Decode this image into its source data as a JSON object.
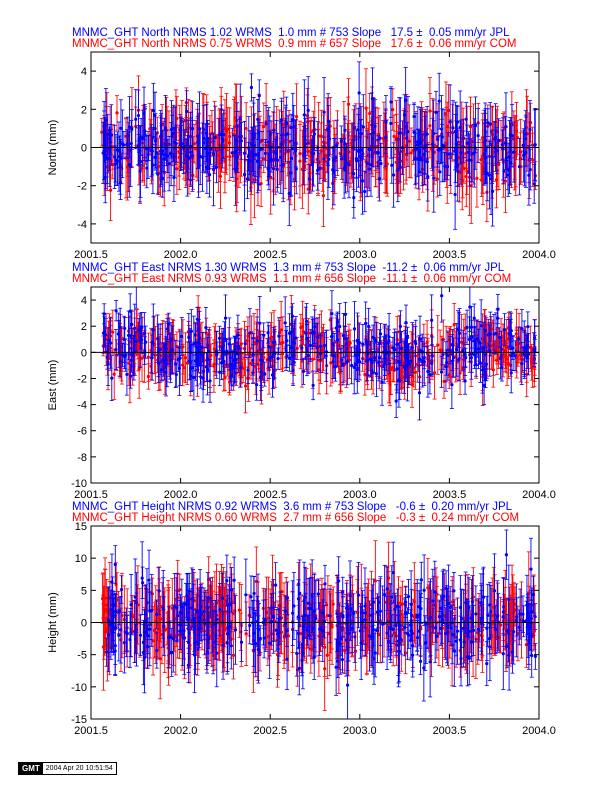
{
  "stamp": {
    "logo": "GMT",
    "text": "2004 Apr 20 10:51:54"
  },
  "colors": {
    "jpl": "#0000ff",
    "com": "#ff0000",
    "zero_line": "#000000"
  },
  "chart_data": [
    {
      "type": "scatter",
      "component": "north",
      "ylabel": "North (mm)",
      "ylim": [
        -5,
        5
      ],
      "yticks": [
        -4,
        -2,
        0,
        2,
        4
      ],
      "xlim": [
        2001.5,
        2004.0
      ],
      "xticks": [
        2001.5,
        2002.0,
        2002.5,
        2003.0,
        2003.5,
        2004.0
      ],
      "xtick_labels": [
        "2001.5",
        "2002.0",
        "2002.5",
        "2003.0",
        "2003.5",
        "2004.0"
      ],
      "header": [
        "MNMC_GHT North NRMS 1.02 WRMS  1.0 mm # 753 Slope   17.5 ±  0.05 mm/yr JPL",
        "MNMC_GHT North NRMS 0.75 WRMS  0.9 mm # 657 Slope   17.6 ±  0.06 mm/yr COM"
      ],
      "series": [
        {
          "name": "JPL",
          "color": "#0000ff",
          "count": 753,
          "nrms": 1.02,
          "wrms_mm": 1.0,
          "slope_mm_yr": 17.5,
          "slope_sigma": 0.05,
          "scatter_sd": 1.0,
          "error_bar_mean": 1.3
        },
        {
          "name": "COM",
          "color": "#ff0000",
          "count": 657,
          "nrms": 0.75,
          "wrms_mm": 0.9,
          "slope_mm_yr": 17.6,
          "slope_sigma": 0.06,
          "scatter_sd": 0.9,
          "error_bar_mean": 1.4
        }
      ]
    },
    {
      "type": "scatter",
      "component": "east",
      "ylabel": "East (mm)",
      "ylim": [
        -10,
        5
      ],
      "yticks": [
        -10,
        -8,
        -6,
        -4,
        -2,
        0,
        2,
        4
      ],
      "xlim": [
        2001.5,
        2004.0
      ],
      "xticks": [
        2001.5,
        2002.0,
        2002.5,
        2003.0,
        2003.5,
        2004.0
      ],
      "xtick_labels": [
        "2001.5",
        "2002.0",
        "2002.5",
        "2003.0",
        "2003.5",
        "2004.0"
      ],
      "header": [
        "MNMC_GHT East NRMS 1.30 WRMS  1.3 mm # 753 Slope  -11.2 ±  0.06 mm/yr JPL",
        "MNMC_GHT East NRMS 0.93 WRMS  1.1 mm # 656 Slope  -11.1 ±  0.06 mm/yr COM"
      ],
      "series": [
        {
          "name": "JPL",
          "color": "#0000ff",
          "count": 753,
          "nrms": 1.3,
          "wrms_mm": 1.3,
          "slope_mm_yr": -11.2,
          "slope_sigma": 0.06,
          "scatter_sd": 1.3,
          "error_bar_mean": 1.4
        },
        {
          "name": "COM",
          "color": "#ff0000",
          "count": 656,
          "nrms": 0.93,
          "wrms_mm": 1.1,
          "slope_mm_yr": -11.1,
          "slope_sigma": 0.06,
          "scatter_sd": 1.1,
          "error_bar_mean": 1.5
        }
      ]
    },
    {
      "type": "scatter",
      "component": "height",
      "ylabel": "Height (mm)",
      "ylim": [
        -15,
        15
      ],
      "yticks": [
        -15,
        -10,
        -5,
        0,
        5,
        10,
        15
      ],
      "xlim": [
        2001.5,
        2004.0
      ],
      "xticks": [
        2001.5,
        2002.0,
        2002.5,
        2003.0,
        2003.5,
        2004.0
      ],
      "xtick_labels": [
        "2001.5",
        "2002.0",
        "2002.5",
        "2003.0",
        "2003.5",
        "2004.0"
      ],
      "header": [
        "MNMC_GHT Height NRMS 0.92 WRMS  3.6 mm # 753 Slope   -0.6 ±  0.20 mm/yr JPL",
        "MNMC_GHT Height NRMS 0.60 WRMS  2.7 mm # 656 Slope   -0.3 ±  0.24 mm/yr COM"
      ],
      "series": [
        {
          "name": "JPL",
          "color": "#0000ff",
          "count": 753,
          "nrms": 0.92,
          "wrms_mm": 3.6,
          "slope_mm_yr": -0.6,
          "slope_sigma": 0.2,
          "scatter_sd": 3.6,
          "error_bar_mean": 4.0
        },
        {
          "name": "COM",
          "color": "#ff0000",
          "count": 656,
          "nrms": 0.6,
          "wrms_mm": 2.7,
          "slope_mm_yr": -0.3,
          "slope_sigma": 0.24,
          "scatter_sd": 2.7,
          "error_bar_mean": 4.5
        }
      ]
    }
  ]
}
